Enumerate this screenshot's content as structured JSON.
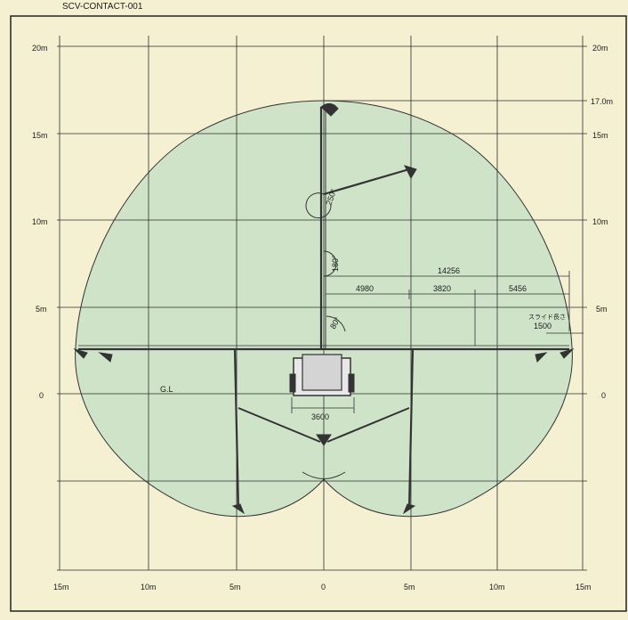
{
  "header": {
    "text": "   SCV-CONTACT-001"
  },
  "colors": {
    "page": "#f6f0d3",
    "envelope": "#cfe3c9",
    "envelope_edge": "#333333",
    "grid": "#2b2b2b",
    "machine": "#333333"
  },
  "axes": {
    "left_y_labels": [
      "20m",
      "15m",
      "10m",
      "5m",
      "0"
    ],
    "right_y_labels": [
      "20m",
      "17.0m",
      "15m",
      "10m",
      "5m",
      "0"
    ],
    "x_labels": [
      "15m",
      "10m",
      "5m",
      "0",
      "5m",
      "10m",
      "15m"
    ]
  },
  "diagram": {
    "ground_line": "G.L",
    "angles": {
      "a250": "250°",
      "a180": "180°",
      "a80": "80°"
    },
    "dims": {
      "total_reach": "14256",
      "seg1": "4980",
      "seg2": "3820",
      "seg3": "5456",
      "slide_label": "スライド長さ",
      "slide": "1500",
      "truck_width": "3600"
    }
  }
}
